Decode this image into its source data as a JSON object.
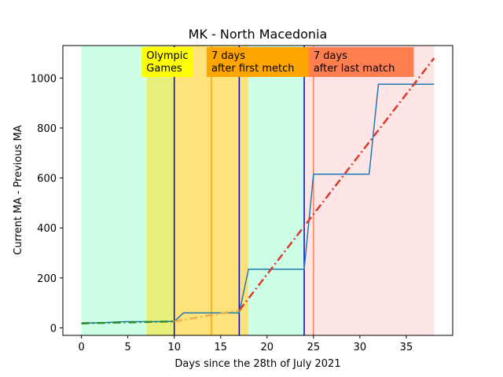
{
  "chart_data": {
    "type": "line",
    "title": "MK - North Macedonia",
    "xlabel": "Days since the 28th of July 2021",
    "ylabel": "Current MA - Previous MA",
    "xlim": [
      -2,
      40
    ],
    "ylim": [
      -30,
      1130
    ],
    "xticks": [
      0,
      5,
      10,
      15,
      20,
      25,
      30,
      35
    ],
    "yticks": [
      0,
      200,
      400,
      600,
      800,
      1000
    ],
    "grid": false,
    "background_bands": [
      {
        "x0": 0,
        "x1": 7,
        "color": "#ccffe6"
      },
      {
        "x0": 7,
        "x1": 10,
        "color": "#e6ef7a"
      },
      {
        "x0": 10,
        "x1": 18,
        "color": "#ffe27a"
      },
      {
        "x0": 18,
        "x1": 24,
        "color": "#ccffe6"
      },
      {
        "x0": 24,
        "x1": 38,
        "color": "#ffe6e6"
      }
    ],
    "vertical_lines": [
      {
        "x": 10,
        "color": "#0000cc"
      },
      {
        "x": 14,
        "color": "#ffa500"
      },
      {
        "x": 17,
        "color": "#0000cc"
      },
      {
        "x": 24,
        "color": "#0000cc"
      },
      {
        "x": 25,
        "color": "#ff7f50"
      }
    ],
    "annotations": [
      {
        "lines": [
          "Olympic",
          "Games"
        ],
        "x": 7,
        "color": "#ffff00"
      },
      {
        "lines": [
          "7 days",
          "after first metch"
        ],
        "x": 14,
        "color": "#ffa500"
      },
      {
        "lines": [
          "7 days",
          "after last match"
        ],
        "x": 25,
        "color": "#ff7f50"
      }
    ],
    "series": [
      {
        "style": "solid",
        "color": "#1f77b4",
        "x": [
          0,
          1,
          2,
          3,
          4,
          5,
          6,
          7,
          8,
          9,
          10,
          11,
          12,
          13,
          14,
          15,
          16,
          17,
          18,
          19,
          20,
          21,
          22,
          23,
          24,
          25,
          26,
          27,
          28,
          29,
          30,
          31,
          32,
          33,
          34,
          35,
          36,
          37,
          38
        ],
        "y": [
          20,
          20,
          20,
          22,
          24,
          25,
          25,
          25,
          25,
          26,
          26,
          60,
          60,
          60,
          60,
          60,
          60,
          60,
          235,
          235,
          235,
          235,
          235,
          235,
          235,
          615,
          615,
          615,
          615,
          615,
          615,
          615,
          975,
          975,
          975,
          975,
          975,
          975,
          975
        ]
      },
      {
        "style": "dashdot",
        "color": "#2e8b2e",
        "x": [
          0,
          10
        ],
        "y": [
          18,
          26
        ]
      },
      {
        "style": "dashdot",
        "color": "#e8b04a",
        "x": [
          10,
          17
        ],
        "y": [
          26,
          70
        ]
      },
      {
        "style": "dashdot",
        "color": "#d83a2a",
        "x": [
          17,
          38
        ],
        "y": [
          70,
          1080
        ]
      }
    ]
  }
}
